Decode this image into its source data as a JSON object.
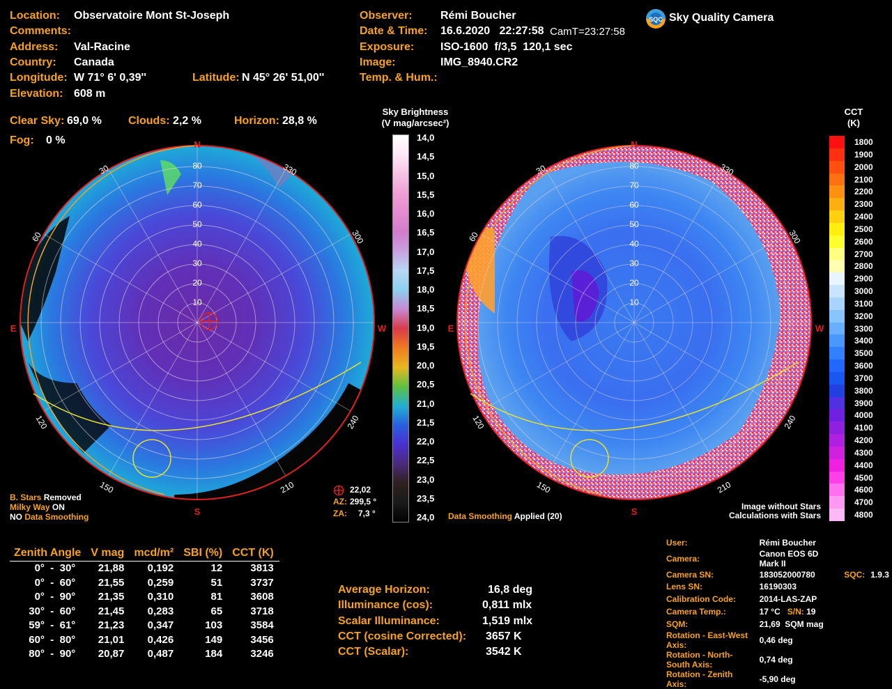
{
  "header": {
    "location_label": "Location:",
    "location": "Observatoire Mont St-Joseph",
    "comments_label": "Comments:",
    "address_label": "Address:",
    "address": "Val-Racine",
    "country_label": "Country:",
    "country": "Canada",
    "longitude_label": "Longitude:",
    "longitude": "W 71° 6' 0,39''",
    "latitude_label": "Latitude:",
    "latitude": "N 45° 26' 51,00''",
    "elevation_label": "Elevation:",
    "elevation": "608 m",
    "observer_label": "Observer:",
    "observer": "Rémi Boucher",
    "datetime_label": "Date & Time:",
    "datetime": "16.6.2020   22:27:58",
    "camtime": "CamT=23:27:58",
    "exposure_label": "Exposure:",
    "exposure": "ISO-1600  f/3,5  120,1 sec",
    "image_label": "Image:",
    "image": "IMG_8940.CR2",
    "temphum_label": "Temp. & Hum.:",
    "logo_text": "Sky Quality Camera",
    "logo_badge": "SQC"
  },
  "sky_stats": {
    "clear_label": "Clear Sky:",
    "clear": "69,0 %",
    "clouds_label": "Clouds:",
    "clouds": "2,2 %",
    "horizon_label": "Horizon:",
    "horizon": "28,8 %",
    "fog_label": "Fog:",
    "fog": "0 %"
  },
  "brightness_scale": {
    "title1": "Sky Brightness",
    "title2": "(V mag/arcsec²)",
    "ticks": [
      "14,0",
      "14,5",
      "15,0",
      "15,5",
      "16,0",
      "16,5",
      "17,0",
      "17,5",
      "18,0",
      "18,5",
      "19,0",
      "19,5",
      "20,0",
      "20,5",
      "21,0",
      "21,5",
      "22,0",
      "22,5",
      "23,0",
      "23,5",
      "24,0"
    ],
    "colors": [
      "#ffffff",
      "#fde9f6",
      "#f7c4e6",
      "#efa0d4",
      "#e68bd0",
      "#d17ccc",
      "#c9a0e0",
      "#b8d8f4",
      "#8cd0f0",
      "#c78ad3",
      "#d83a4a",
      "#f07a20",
      "#e8b820",
      "#60c040",
      "#20b0d0",
      "#2a5fe0",
      "#4a30d0",
      "#4a2a7a",
      "#2e2020",
      "#1a1a1a",
      "#000000"
    ]
  },
  "cct_scale": {
    "title1": "CCT",
    "title2": "(K)",
    "ticks": [
      "1800",
      "1900",
      "2000",
      "2100",
      "2200",
      "2300",
      "2400",
      "2500",
      "2600",
      "2700",
      "2800",
      "2900",
      "3000",
      "3100",
      "3200",
      "3300",
      "3400",
      "3500",
      "3600",
      "3700",
      "3800",
      "3900",
      "4000",
      "4100",
      "4200",
      "4300",
      "4400",
      "4500",
      "4600",
      "4700",
      "4800"
    ],
    "colors": [
      "#ff1010",
      "#ff3010",
      "#ff5010",
      "#ff7010",
      "#ff9010",
      "#ffb010",
      "#ffd010",
      "#fff010",
      "#ffff30",
      "#ffff80",
      "#ffffb0",
      "#e8f4ff",
      "#c8e4ff",
      "#a8d4ff",
      "#88c4ff",
      "#68b0ff",
      "#4898ff",
      "#3080ff",
      "#2068ff",
      "#1858f0",
      "#2040e0",
      "#5030e0",
      "#7020e0",
      "#9020e0",
      "#b020e0",
      "#d020e0",
      "#f020e0",
      "#ff40e8",
      "#ff70ee",
      "#ff98f2",
      "#ffb8f6"
    ]
  },
  "compass": {
    "n": "N",
    "s": "S",
    "e": "E",
    "w": "W",
    "azimuths": [
      "30",
      "60",
      "120",
      "150",
      "210",
      "240",
      "300",
      "330"
    ],
    "rings": [
      "80",
      "70",
      "60",
      "50",
      "40",
      "30",
      "20",
      "10"
    ]
  },
  "left_plot": {
    "notes": [
      {
        "a": "B. Stars",
        "b": " Removed"
      },
      {
        "a": "Milky Way",
        "b": " ON"
      },
      {
        "a": "NO ",
        "b": "Data Smoothing"
      }
    ],
    "zenith_value": "22,02",
    "az_label": "AZ:",
    "az": "299,5 °",
    "za_label": "ZA:",
    "za": "7,3 °"
  },
  "right_plot": {
    "smoothing_label": "Data Smoothing",
    "smoothing_value": " Applied (20)",
    "note1": "Image without Stars",
    "note2": "Calculations with Stars"
  },
  "zenith_table": {
    "headers": [
      "Zenith Angle",
      "V mag",
      "mcd/m²",
      "SBI (%)",
      "CCT (K)"
    ],
    "rows": [
      [
        "0°  -  30°",
        "21,88",
        "0,192",
        "12",
        "3813"
      ],
      [
        "0°  -  60°",
        "21,55",
        "0,259",
        "51",
        "3737"
      ],
      [
        "0°  -  90°",
        "21,35",
        "0,310",
        "81",
        "3608"
      ],
      [
        "30°  -  60°",
        "21,45",
        "0,283",
        "65",
        "3718"
      ],
      [
        "59°  -  61°",
        "21,23",
        "0,347",
        "103",
        "3584"
      ],
      [
        "60°  -  80°",
        "21,01",
        "0,426",
        "149",
        "3456"
      ],
      [
        "80°  -  90°",
        "20,87",
        "0,487",
        "184",
        "3246"
      ]
    ]
  },
  "summary": [
    {
      "label": "Average Horizon:",
      "value": "16,8 deg"
    },
    {
      "label": "Illuminance (cos):",
      "value": "0,811 mlx"
    },
    {
      "label": "Scalar Illuminance:",
      "value": "1,519 mlx"
    },
    {
      "label": "CCT (cosine Corrected):",
      "value": "3657 K"
    },
    {
      "label": "CCT (Scalar):",
      "value": "3542 K"
    }
  ],
  "meta": {
    "user_label": "User:",
    "user": "Rémi Boucher",
    "camera_label": "Camera:",
    "camera": "Canon EOS 6D Mark II",
    "camsn_label": "Camera SN:",
    "camsn": "183052000780",
    "sqc_label": "SQC:",
    "sqc": "1.9.3",
    "lenssn_label": "Lens SN:",
    "lenssn": "16190303",
    "calib_label": "Calibration Code:",
    "calib": "2014-LAS-ZAP",
    "camtemp_label": "Camera Temp.:",
    "camtemp": "17 °C",
    "sn_label": "S/N:",
    "sn": "19",
    "sqm_label": "SQM:",
    "sqm": "21,69  SQM mag",
    "rot_ew_label": "Rotation - East-West Axis:",
    "rot_ew": "0,46 deg",
    "rot_ns_label": "Rotation - North-South Axis:",
    "rot_ns": "0,74 deg",
    "rot_z_label": "Rotation - Zenith Axis:",
    "rot_z": "-5,90 deg"
  }
}
